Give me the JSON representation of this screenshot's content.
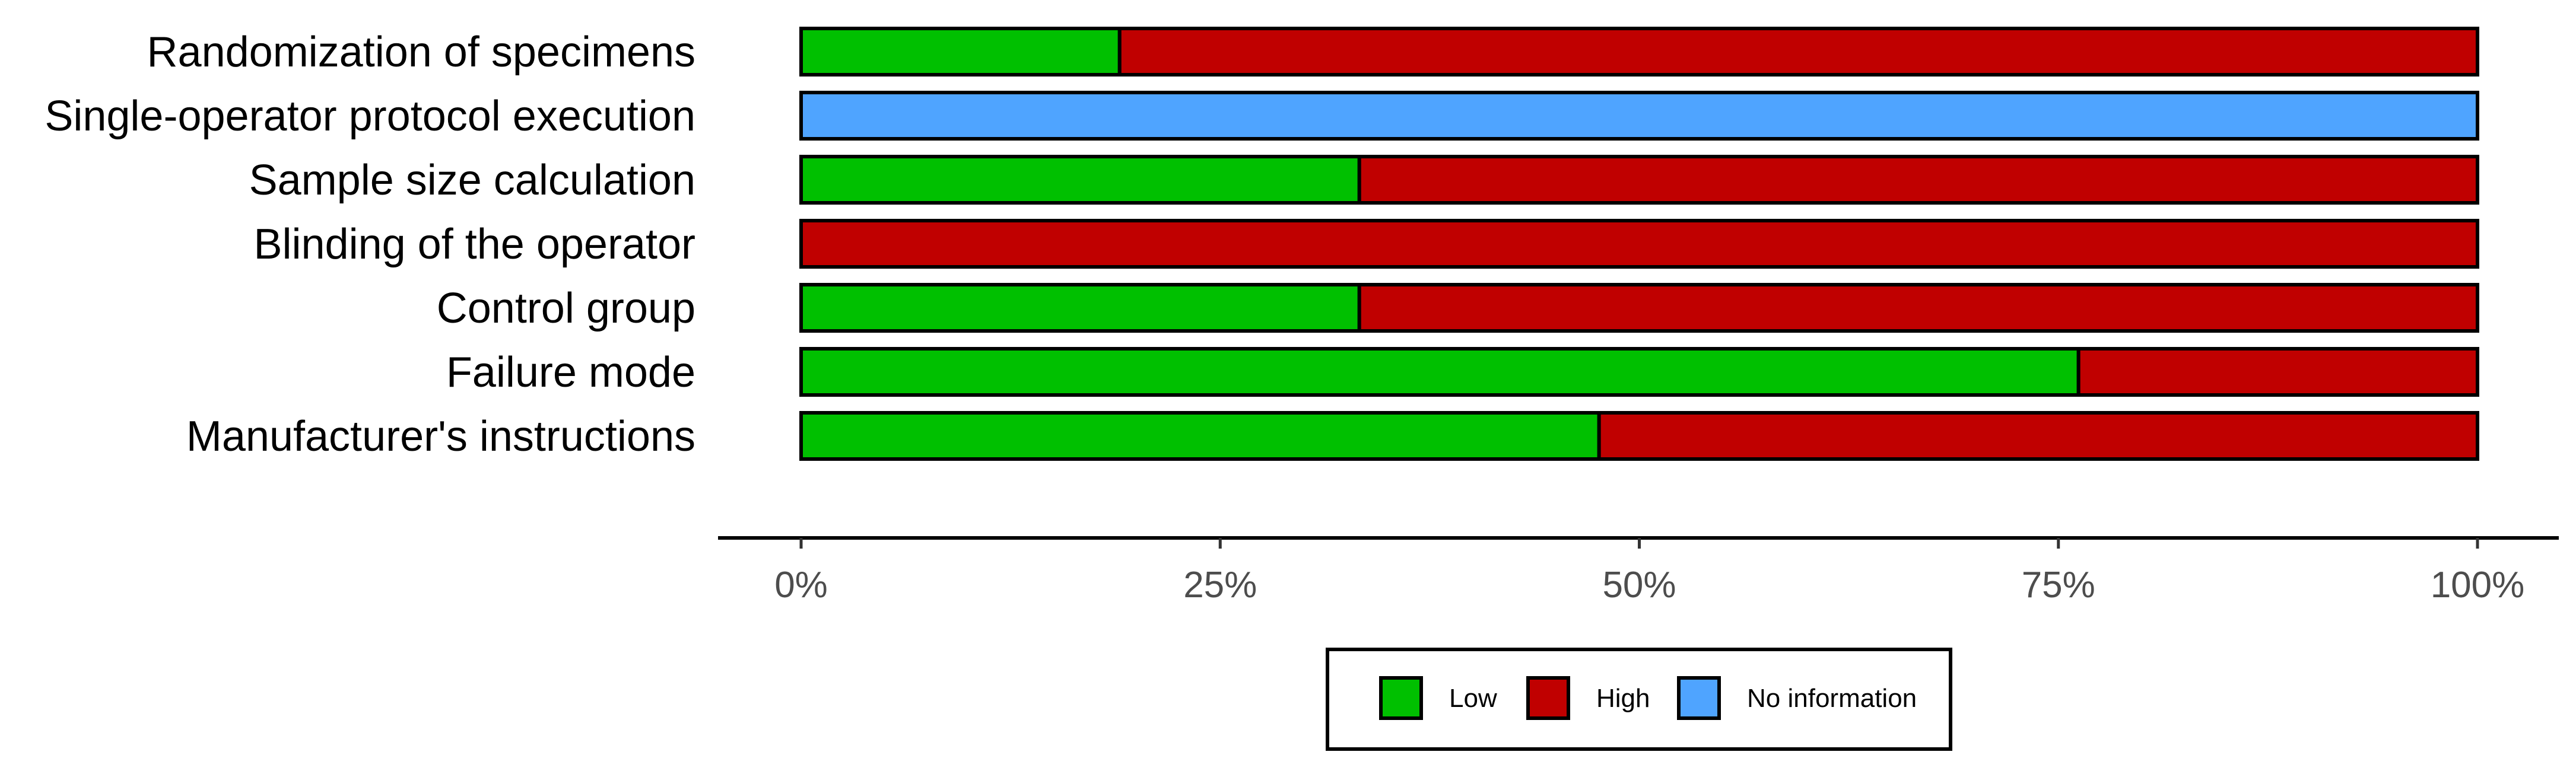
{
  "chart_data": {
    "type": "bar",
    "orientation": "horizontal",
    "stacked": true,
    "categories": [
      "Randomization of specimens",
      "Single-operator protocol execution",
      "Sample size calculation",
      "Blinding of the operator",
      "Control group",
      "Failure mode",
      "Manufacturer's instructions"
    ],
    "series": [
      {
        "name": "Low",
        "color": "#00c000",
        "values": [
          19,
          0,
          33.3,
          0,
          33.3,
          76.2,
          47.6
        ]
      },
      {
        "name": "High",
        "color": "#c00000",
        "values": [
          81,
          0,
          66.7,
          100,
          66.7,
          23.8,
          52.4
        ]
      },
      {
        "name": "No information",
        "color": "#4fa4ff",
        "values": [
          0,
          100,
          0,
          0,
          0,
          0,
          0
        ]
      }
    ],
    "x_ticks": [
      0,
      25,
      50,
      75,
      100
    ],
    "x_tick_labels": [
      "0%",
      "25%",
      "50%",
      "75%",
      "100%"
    ],
    "xlim": [
      0,
      100
    ],
    "grid": false,
    "legend_position": "bottom"
  }
}
